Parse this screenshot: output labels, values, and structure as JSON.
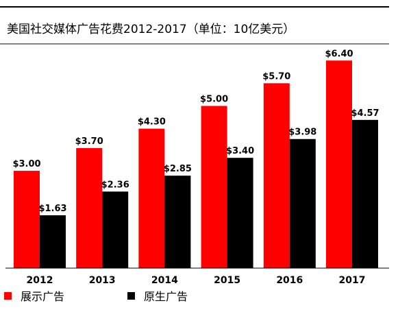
{
  "chart_data": {
    "type": "bar",
    "title": "美国社交媒体广告花费2012-2017（单位：10亿美元）",
    "categories": [
      "2012",
      "2013",
      "2014",
      "2015",
      "2016",
      "2017"
    ],
    "series": [
      {
        "name": "展示广告",
        "color": "#ff0000",
        "values": [
          3.0,
          3.7,
          4.3,
          5.0,
          5.7,
          6.4
        ],
        "labels": [
          "$3.00",
          "$3.70",
          "$4.30",
          "$5.00",
          "$5.70",
          "$6.40"
        ]
      },
      {
        "name": "原生广告",
        "color": "#000000",
        "values": [
          1.63,
          2.36,
          2.85,
          3.4,
          3.98,
          4.57
        ],
        "labels": [
          "$1.63",
          "$2.36",
          "$2.85",
          "$3.40",
          "$3.98",
          "$4.57"
        ]
      }
    ],
    "xlabel": "",
    "ylabel": "",
    "ylim": [
      0,
      7.2
    ],
    "grid": false,
    "legend_position": "bottom-left"
  }
}
